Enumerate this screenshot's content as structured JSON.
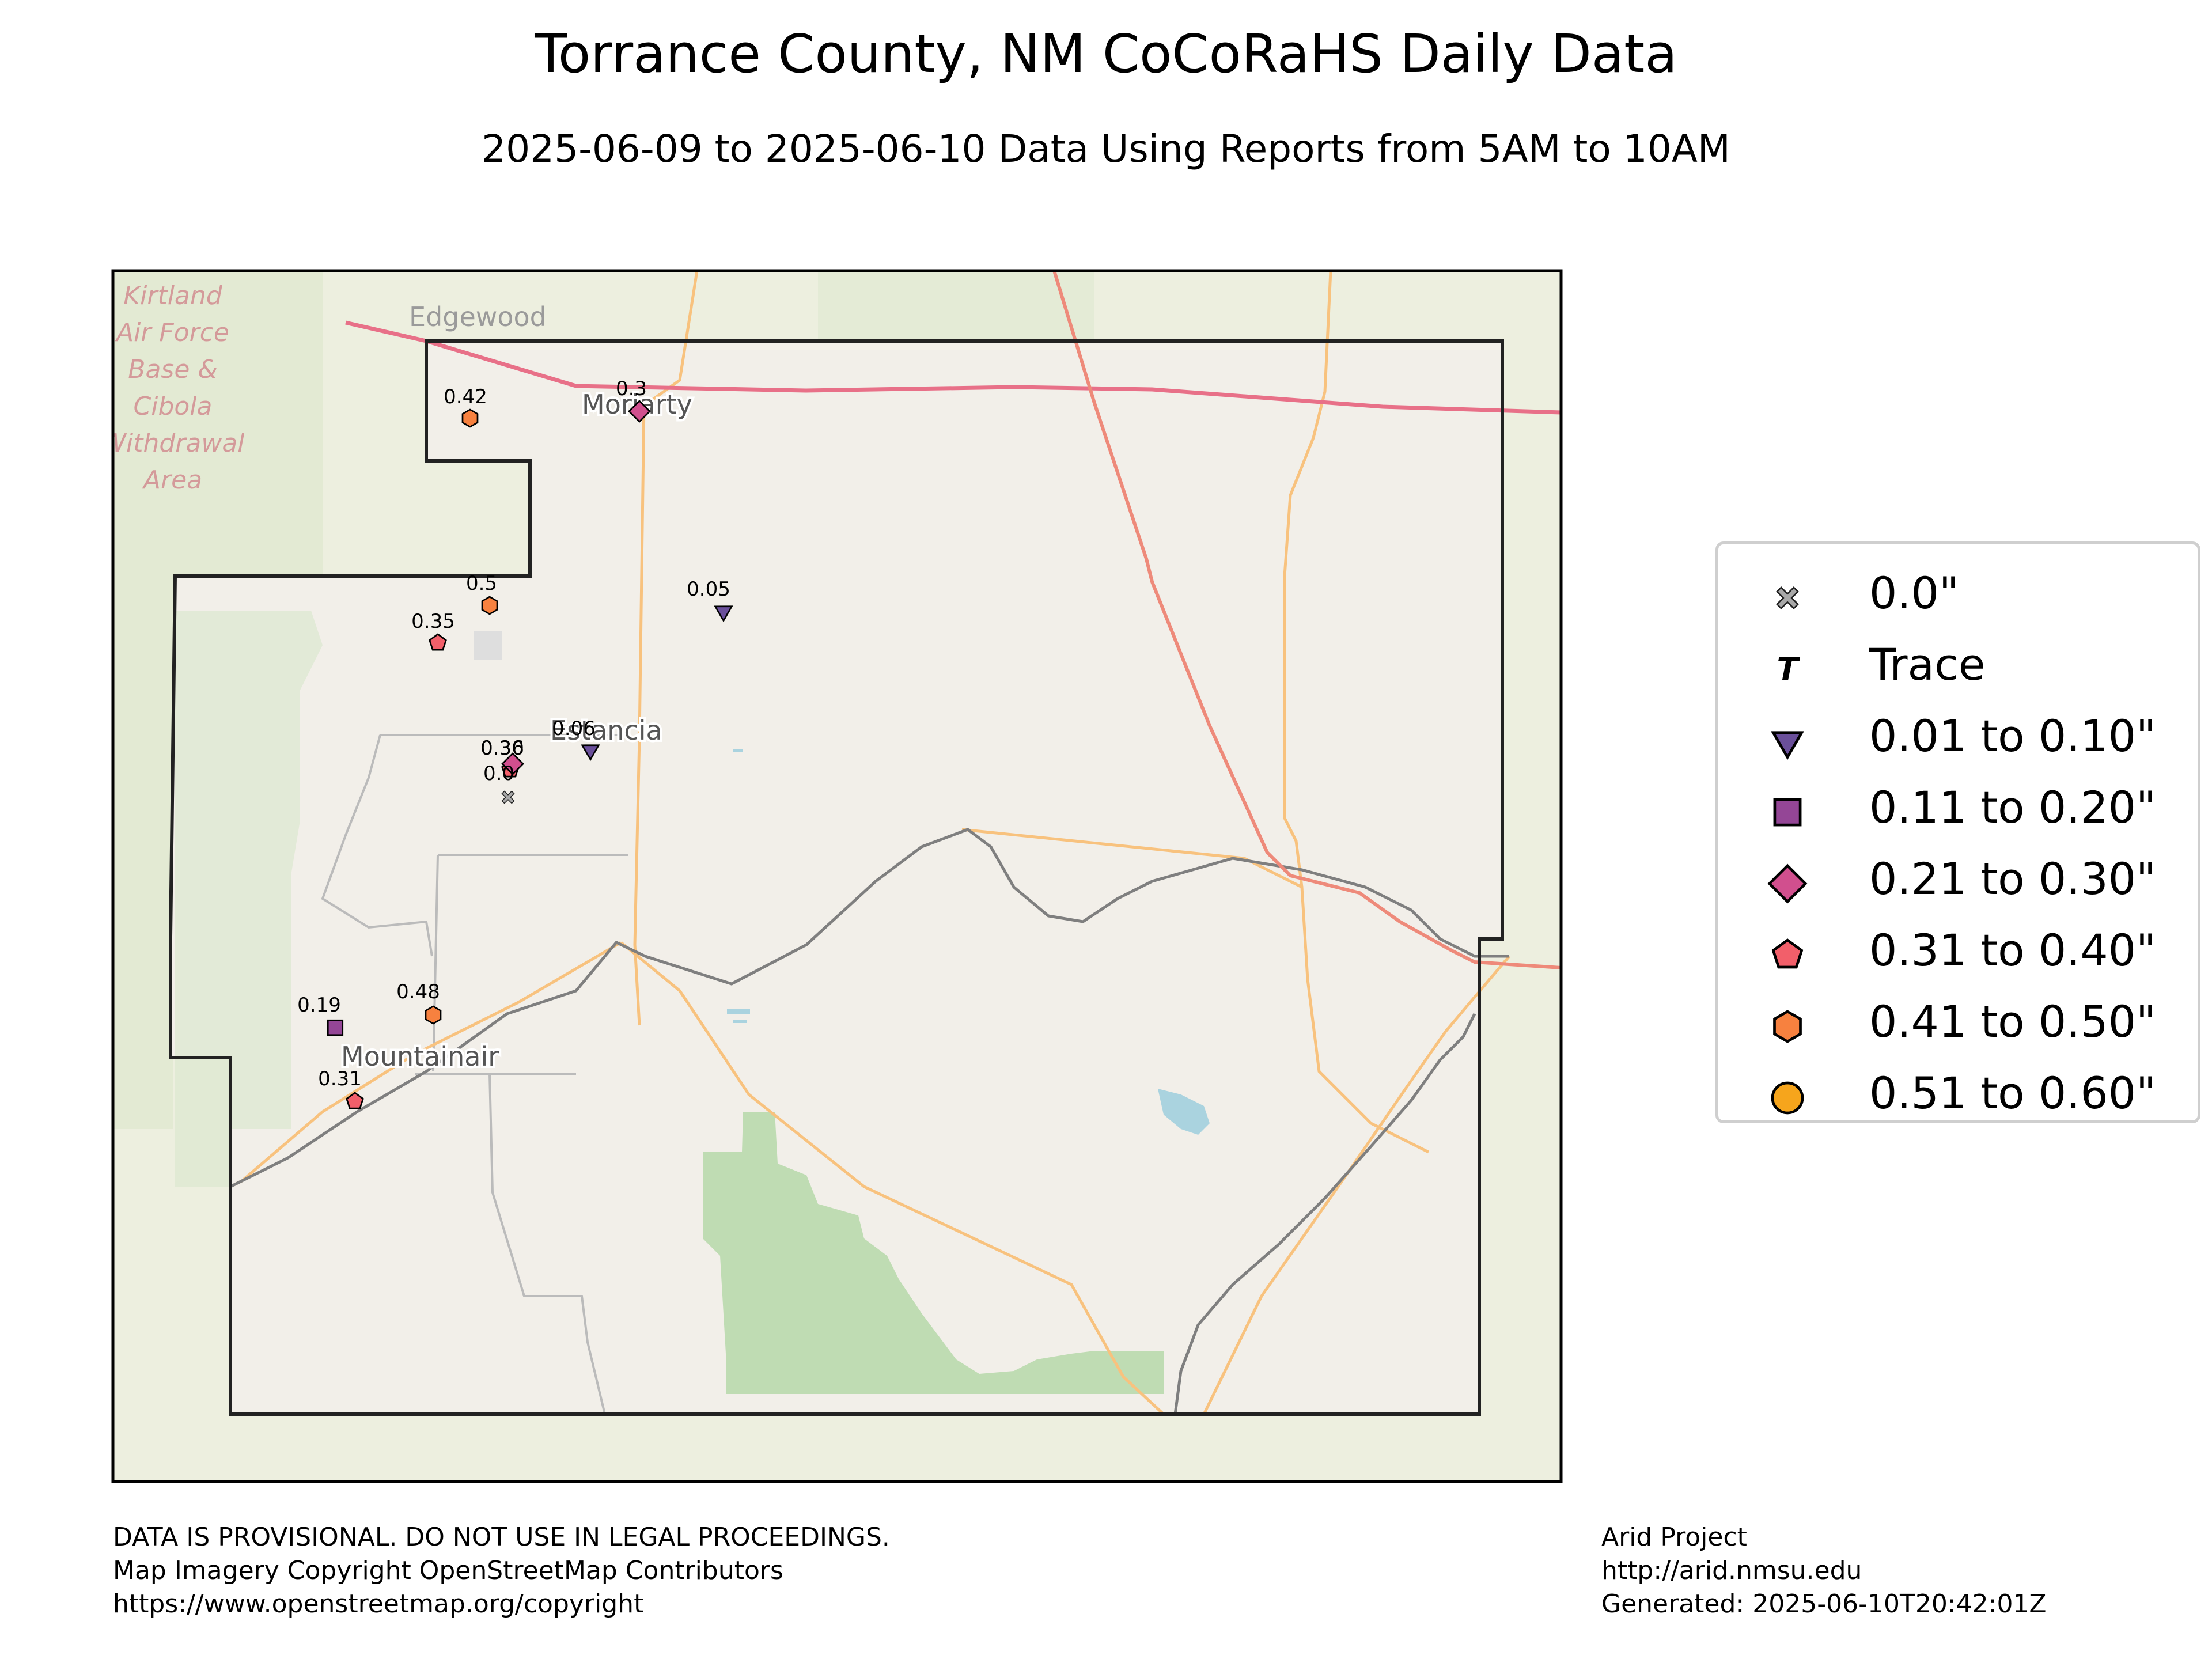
{
  "title": "Torrance County, NM CoCoRaHS Daily Data",
  "subtitle": "2025-06-09 to 2025-06-10 Data Using Reports from 5AM to 10AM",
  "map_labels": {
    "edgewood": "Edgewood",
    "moriarty": "Moriarty",
    "estancia": "Estancia",
    "mountainair": "Mountainair",
    "kirtland": [
      "Kirtland",
      "Air Force",
      "Base &",
      "Cibola",
      "Withdrawal",
      "Area"
    ]
  },
  "stations": [
    {
      "label": "0.42",
      "value": 0.42,
      "category": "0.41 to 0.50\""
    },
    {
      "label": "0.3",
      "value": 0.3,
      "category": "0.21 to 0.30\""
    },
    {
      "label": "0.5",
      "value": 0.5,
      "category": "0.41 to 0.50\""
    },
    {
      "label": "0.35",
      "value": 0.35,
      "category": "0.31 to 0.40\""
    },
    {
      "label": "0.05",
      "value": 0.05,
      "category": "0.01 to 0.10\""
    },
    {
      "label": "0.06",
      "value": 0.06,
      "category": "0.01 to 0.10\""
    },
    {
      "label": "0.36",
      "value": 0.36,
      "category": "0.31 to 0.40\""
    },
    {
      "label": "0.30",
      "value": 0.3,
      "category": "0.21 to 0.30\""
    },
    {
      "label": "0.0",
      "value": 0.0,
      "category": "0.0\""
    },
    {
      "label": "0.19",
      "value": 0.19,
      "category": "0.11 to 0.20\""
    },
    {
      "label": "0.48",
      "value": 0.48,
      "category": "0.41 to 0.50\""
    },
    {
      "label": "0.31",
      "value": 0.31,
      "category": "0.31 to 0.40\""
    }
  ],
  "legend": [
    {
      "label": "0.0\"",
      "marker": "x",
      "color": "#a9a9a9"
    },
    {
      "label": "Trace",
      "marker": "T",
      "color": "#000000"
    },
    {
      "label": "0.01 to 0.10\"",
      "marker": "triangle-down",
      "color": "#6a4f9a"
    },
    {
      "label": "0.11 to 0.20\"",
      "marker": "square",
      "color": "#944696"
    },
    {
      "label": "0.21 to 0.30\"",
      "marker": "diamond",
      "color": "#d14f8e"
    },
    {
      "label": "0.31 to 0.40\"",
      "marker": "pentagon",
      "color": "#f25f6a"
    },
    {
      "label": "0.41 to 0.50\"",
      "marker": "hexagon",
      "color": "#f7813f"
    },
    {
      "label": "0.51 to 0.60\"",
      "marker": "circle",
      "color": "#f6a51c"
    }
  ],
  "footer_left": [
    "DATA IS PROVISIONAL. DO NOT USE IN LEGAL PROCEEDINGS.",
    "Map Imagery Copyright OpenStreetMap Contributors",
    "https://www.openstreetmap.org/copyright"
  ],
  "footer_right": [
    "Arid Project",
    "http://arid.nmsu.edu",
    "Generated: 2025-06-10T20:42:01Z"
  ],
  "colors": {
    "background_land": "#f2efe9",
    "outside_land": "#edefdf",
    "forest": "#bfdcb3",
    "highway": "#e87088",
    "primary_road": "#f8c27e",
    "railway": "#7f7f7f",
    "county_border": "#222222",
    "water": "#aad3df"
  }
}
